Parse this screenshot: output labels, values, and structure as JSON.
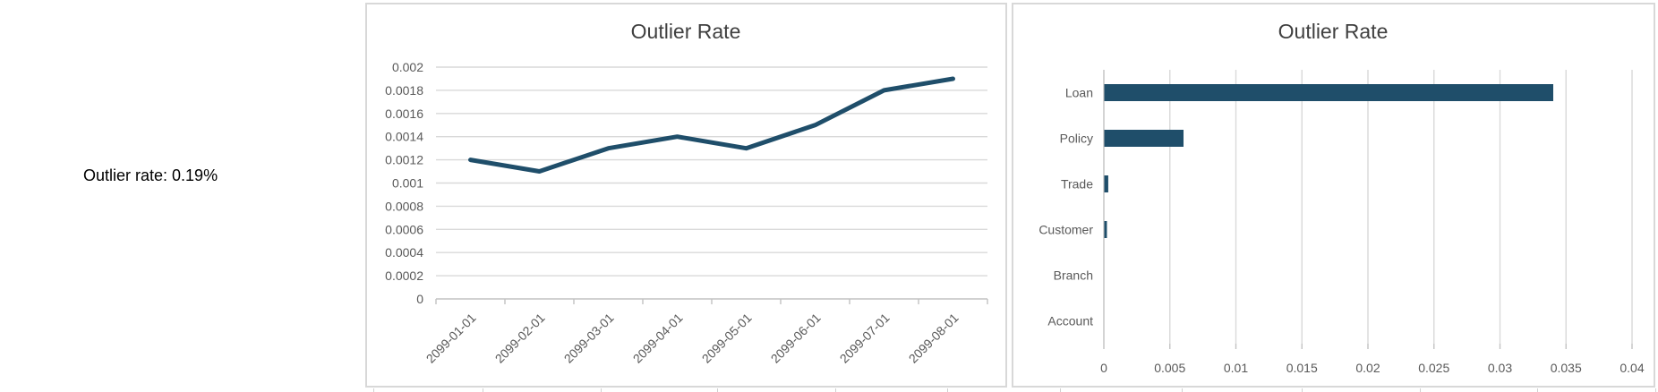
{
  "summary": {
    "text": "Outlier rate: 0.19%"
  },
  "colors": {
    "series": "#1F4E6A",
    "title": "#404040",
    "axis_label": "#595959",
    "gridline": "#D9D9D9",
    "axis_line": "#C2C2C2",
    "panel_border": "#D8D8D8"
  },
  "chart_data": [
    {
      "type": "line",
      "title": "Outlier Rate",
      "x": [
        "2099-01-01",
        "2099-02-01",
        "2099-03-01",
        "2099-04-01",
        "2099-05-01",
        "2099-06-01",
        "2099-07-01",
        "2099-08-01"
      ],
      "values": [
        0.0012,
        0.0011,
        0.0013,
        0.0014,
        0.0013,
        0.0015,
        0.0018,
        0.0019
      ],
      "xlabel": "",
      "ylabel": "",
      "ylim": [
        0,
        0.002
      ],
      "ytick_labels_top_to_bottom": [
        "0.002",
        "0.0018",
        "0.0016",
        "0.0014",
        "0.0012",
        "0.001",
        "0.0008",
        "0.0006",
        "0.0004",
        "0.0002",
        "0"
      ],
      "grid": true,
      "legend": "none"
    },
    {
      "type": "bar",
      "orientation": "horizontal",
      "title": "Outlier Rate",
      "categories": [
        "Loan",
        "Policy",
        "Trade",
        "Customer",
        "Branch",
        "Account"
      ],
      "values": [
        0.034,
        0.006,
        0.0003,
        0.0002,
        0,
        0
      ],
      "xlabel": "",
      "ylabel": "",
      "xlim": [
        0,
        0.04
      ],
      "xtick_labels": [
        "0",
        "0.005",
        "0.01",
        "0.015",
        "0.02",
        "0.025",
        "0.03",
        "0.035",
        "0.04"
      ],
      "grid": true,
      "legend": "none"
    }
  ]
}
